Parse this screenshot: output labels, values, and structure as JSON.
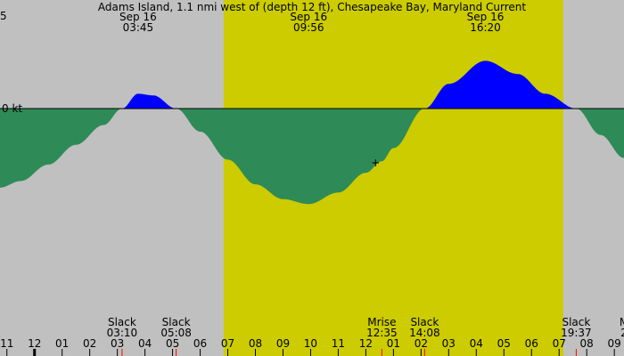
{
  "colors": {
    "night": "#c0c0c0",
    "day": "#cccc00",
    "ebb": "#2e8b57",
    "flood": "#0000ff",
    "tick_red": "#ff0000"
  },
  "chart_data": {
    "type": "area",
    "title": "Adams Island, 1.1 nmi west of (depth 12 ft), Chesapeake Bay, Maryland Current",
    "y_top_label_partial": "5",
    "zero_label": "0 kt",
    "x_unit": "hour",
    "x_range": [
      -1.25,
      21.35
    ],
    "y_range": [
      -4.2,
      1.9
    ],
    "daylight": {
      "start": 6.85,
      "end": 19.15
    },
    "peaks": [
      {
        "date": "Sep 16",
        "time": "03:45",
        "t": 3.75
      },
      {
        "date": "Sep 16",
        "time": "09:56",
        "t": 9.93
      },
      {
        "date": "Sep 16",
        "time": "16:20",
        "t": 16.33
      }
    ],
    "series": [
      {
        "x": [
          -1.25,
          -0.5,
          0.5,
          1.5,
          2.5,
          3.17,
          3.75,
          4.3,
          5.13,
          6.0,
          7.0,
          8.0,
          9.0,
          9.93,
          11.0,
          12.0,
          12.58,
          13.0,
          14.13,
          15.0,
          16.33,
          17.5,
          18.5,
          19.62,
          20.5,
          21.35
        ],
        "y": [
          -2.4,
          -2.2,
          -1.7,
          -1.1,
          -0.5,
          0.0,
          0.45,
          0.4,
          0.0,
          -0.7,
          -1.55,
          -2.3,
          -2.75,
          -2.9,
          -2.55,
          -1.95,
          -1.6,
          -1.2,
          0.0,
          0.75,
          1.45,
          1.05,
          0.45,
          0.0,
          -0.8,
          -1.5
        ]
      }
    ],
    "events": [
      {
        "label": "Slack",
        "time": "03:10",
        "t": 3.17
      },
      {
        "label": "Slack",
        "time": "05:08",
        "t": 5.13
      },
      {
        "label": "Mrise",
        "time": "12:35",
        "t": 12.58
      },
      {
        "label": "Slack",
        "time": "14:08",
        "t": 14.13
      },
      {
        "label": "Slack",
        "time": "19:37",
        "t": 19.62
      },
      {
        "label": "M",
        "time": "2",
        "t": 21.35
      }
    ],
    "x_tick_labels": [
      "11",
      "12",
      "01",
      "02",
      "03",
      "04",
      "05",
      "06",
      "07",
      "08",
      "09",
      "10",
      "11",
      "12",
      "01",
      "02",
      "03",
      "04",
      "05",
      "06",
      "07",
      "08",
      "09"
    ],
    "x_tick_start": -1,
    "marker": {
      "symbol": "+",
      "t": 12.35,
      "v": -1.75
    }
  }
}
